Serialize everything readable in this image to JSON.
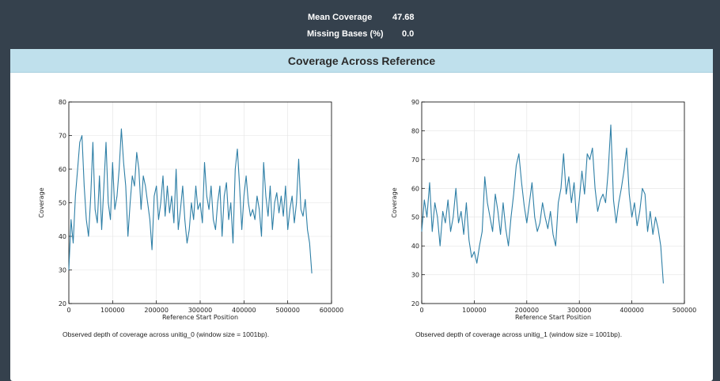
{
  "stats": {
    "mean_coverage_label": "Mean Coverage",
    "mean_coverage_value": "47.68",
    "missing_bases_label": "Missing Bases (%)",
    "missing_bases_value": "0.0"
  },
  "panel": {
    "title": "Coverage Across Reference"
  },
  "colors": {
    "background": "#35414d",
    "header": "#bfe0ec",
    "line": "#2e7fa6"
  },
  "chart_data": [
    {
      "type": "line",
      "title": "",
      "caption": "Observed depth of coverage across unitig_0 (window size = 1001bp).",
      "xlabel": "Reference Start Position",
      "ylabel": "Coverage",
      "xlim": [
        0,
        600000
      ],
      "ylim": [
        20,
        80
      ],
      "xticks": [
        "0",
        "100000",
        "200000",
        "300000",
        "400000",
        "500000",
        "600000"
      ],
      "yticks": [
        "20",
        "30",
        "40",
        "50",
        "60",
        "70",
        "80"
      ],
      "grid": true,
      "series": [
        {
          "x": [
            0,
            5000,
            10000,
            15000,
            20000,
            25000,
            30000,
            35000,
            40000,
            45000,
            50000,
            55000,
            60000,
            65000,
            70000,
            75000,
            80000,
            85000,
            90000,
            95000,
            100000,
            105000,
            110000,
            115000,
            120000,
            125000,
            130000,
            135000,
            140000,
            145000,
            150000,
            155000,
            160000,
            165000,
            170000,
            175000,
            180000,
            185000,
            190000,
            195000,
            200000,
            205000,
            210000,
            215000,
            220000,
            225000,
            230000,
            235000,
            240000,
            245000,
            250000,
            255000,
            260000,
            265000,
            270000,
            275000,
            280000,
            285000,
            290000,
            295000,
            300000,
            305000,
            310000,
            315000,
            320000,
            325000,
            330000,
            335000,
            340000,
            345000,
            350000,
            355000,
            360000,
            365000,
            370000,
            375000,
            380000,
            385000,
            390000,
            395000,
            400000,
            405000,
            410000,
            415000,
            420000,
            425000,
            430000,
            435000,
            440000,
            445000,
            450000,
            455000,
            460000,
            465000,
            470000,
            475000,
            480000,
            485000,
            490000,
            495000,
            500000,
            505000,
            510000,
            515000,
            520000,
            525000,
            530000,
            535000,
            540000,
            545000,
            550000,
            555000
          ],
          "y": [
            30,
            45,
            38,
            52,
            60,
            68,
            70,
            55,
            45,
            40,
            52,
            68,
            48,
            44,
            58,
            42,
            55,
            68,
            50,
            45,
            62,
            48,
            52,
            60,
            72,
            62,
            55,
            40,
            50,
            58,
            55,
            65,
            60,
            48,
            58,
            55,
            50,
            45,
            36,
            52,
            55,
            45,
            50,
            58,
            46,
            55,
            47,
            52,
            44,
            60,
            42,
            48,
            55,
            45,
            38,
            42,
            50,
            45,
            55,
            48,
            50,
            44,
            62,
            52,
            48,
            55,
            45,
            42,
            50,
            55,
            40,
            52,
            56,
            45,
            50,
            38,
            60,
            66,
            55,
            42,
            52,
            58,
            50,
            46,
            48,
            45,
            52,
            48,
            40,
            62,
            52,
            46,
            55,
            42,
            50,
            53,
            47,
            52,
            46,
            55,
            42,
            48,
            52,
            44,
            50,
            63,
            48,
            46,
            51,
            42,
            38,
            29
          ]
        }
      ]
    },
    {
      "type": "line",
      "title": "",
      "caption": "Observed depth of coverage across unitig_1 (window size = 1001bp).",
      "xlabel": "Reference Start Position",
      "ylabel": "Coverage",
      "xlim": [
        0,
        500000
      ],
      "ylim": [
        20,
        90
      ],
      "xticks": [
        "0",
        "100000",
        "200000",
        "300000",
        "400000",
        "500000"
      ],
      "yticks": [
        "20",
        "30",
        "40",
        "50",
        "60",
        "70",
        "80",
        "90"
      ],
      "grid": true,
      "series": [
        {
          "x": [
            0,
            5000,
            10000,
            15000,
            20000,
            25000,
            30000,
            35000,
            40000,
            45000,
            50000,
            55000,
            60000,
            65000,
            70000,
            75000,
            80000,
            85000,
            90000,
            95000,
            100000,
            105000,
            110000,
            115000,
            120000,
            125000,
            130000,
            135000,
            140000,
            145000,
            150000,
            155000,
            160000,
            165000,
            170000,
            175000,
            180000,
            185000,
            190000,
            195000,
            200000,
            205000,
            210000,
            215000,
            220000,
            225000,
            230000,
            235000,
            240000,
            245000,
            250000,
            255000,
            260000,
            265000,
            270000,
            275000,
            280000,
            285000,
            290000,
            295000,
            300000,
            305000,
            310000,
            315000,
            320000,
            325000,
            330000,
            335000,
            340000,
            345000,
            350000,
            355000,
            360000,
            365000,
            370000,
            375000,
            380000,
            385000,
            390000,
            395000,
            400000,
            405000,
            410000,
            415000,
            420000,
            425000,
            430000,
            435000,
            440000,
            445000,
            450000,
            455000,
            460000
          ],
          "y": [
            45,
            56,
            50,
            62,
            45,
            55,
            50,
            40,
            52,
            48,
            56,
            45,
            50,
            60,
            48,
            52,
            44,
            55,
            42,
            36,
            38,
            34,
            40,
            45,
            64,
            55,
            50,
            45,
            58,
            52,
            44,
            55,
            46,
            40,
            50,
            58,
            68,
            72,
            62,
            54,
            48,
            55,
            62,
            50,
            45,
            48,
            55,
            50,
            46,
            52,
            44,
            40,
            55,
            60,
            72,
            58,
            64,
            55,
            62,
            48,
            56,
            66,
            58,
            72,
            70,
            74,
            60,
            52,
            56,
            58,
            55,
            66,
            82,
            56,
            48,
            55,
            60,
            66,
            74,
            58,
            50,
            55,
            47,
            52,
            60,
            58,
            45,
            52,
            44,
            50,
            46,
            40,
            27
          ]
        }
      ]
    }
  ]
}
